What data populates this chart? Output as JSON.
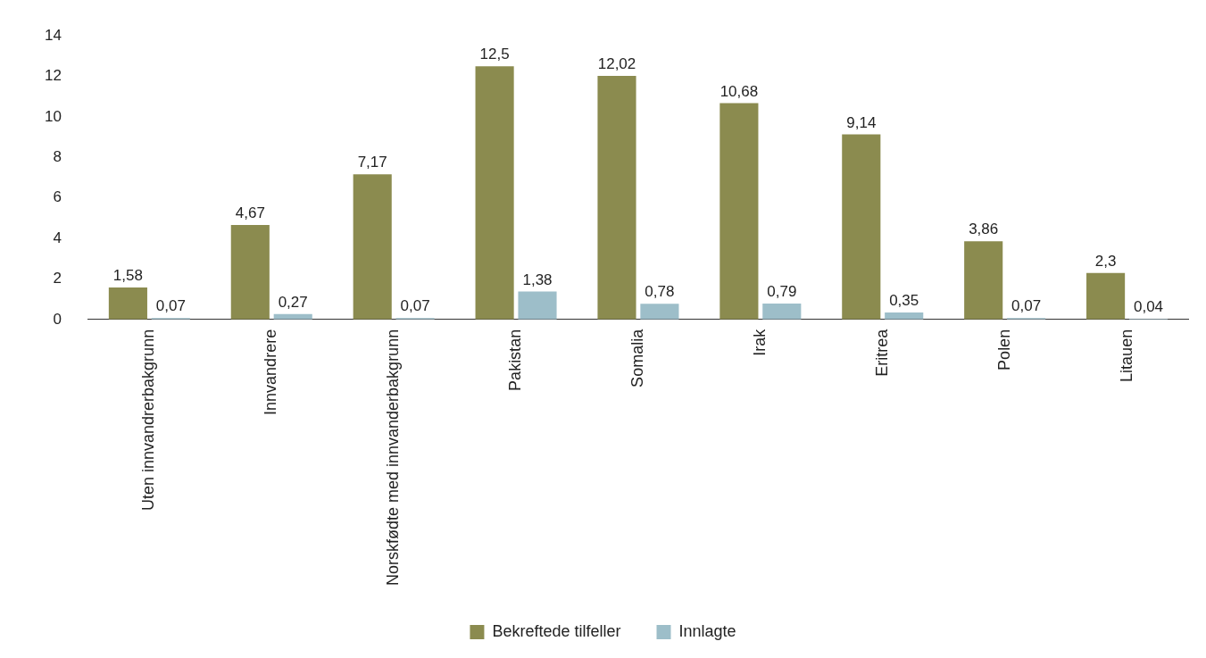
{
  "chart_data": {
    "type": "bar",
    "categories": [
      "Uten innvandrerbakgrunn",
      "Innvandrere",
      "Norskfødte med innvanderbakgrunn",
      "Pakistan",
      "Somalia",
      "Irak",
      "Eritrea",
      "Polen",
      "Litauen"
    ],
    "series": [
      {
        "name": "Bekreftede tilfeller",
        "color": "#8b8b4f",
        "values": [
          1.58,
          4.67,
          7.17,
          12.5,
          12.02,
          10.68,
          9.14,
          3.86,
          2.3
        ],
        "value_labels": [
          "1,58",
          "4,67",
          "7,17",
          "12,5",
          "12,02",
          "10,68",
          "9,14",
          "3,86",
          "2,3"
        ]
      },
      {
        "name": "Innlagte",
        "color": "#9dbec9",
        "values": [
          0.07,
          0.27,
          0.07,
          1.38,
          0.78,
          0.79,
          0.35,
          0.07,
          0.04
        ],
        "value_labels": [
          "0,07",
          "0,27",
          "0,07",
          "1,38",
          "0,78",
          "0,79",
          "0,35",
          "0,07",
          "0,04"
        ]
      }
    ],
    "ylim": [
      0,
      14
    ],
    "yticks": [
      0,
      2,
      4,
      6,
      8,
      10,
      12,
      14
    ],
    "grid": false,
    "legend": "bottom"
  }
}
